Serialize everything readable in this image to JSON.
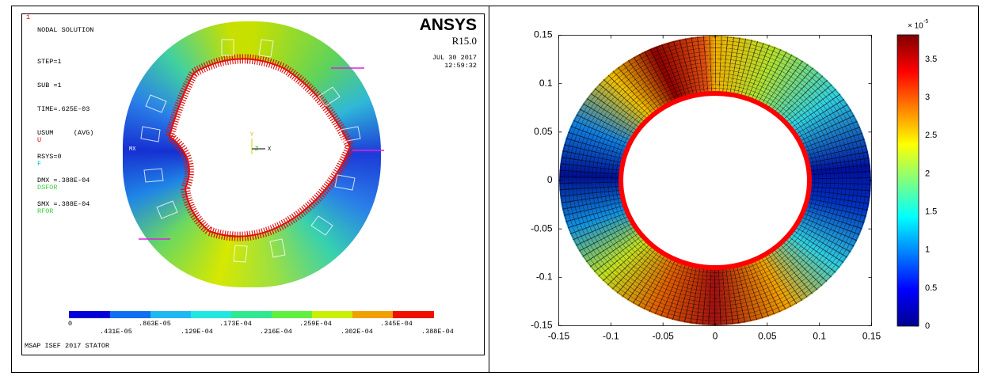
{
  "left_panel": {
    "corner_label": "1",
    "title": "NODAL SOLUTION",
    "info": [
      "STEP=1",
      "SUB =1",
      "TIME=.625E-03",
      "USUM     (AVG)",
      "RSYS=0",
      "DMX =.388E-04",
      "SMX =.388E-04"
    ],
    "legend": [
      "U",
      "F",
      "DSFOR",
      "RFOR"
    ],
    "brand": "ANSYS",
    "version": "R15.0",
    "date": "JUL 30 2017",
    "time": "12:59:32",
    "marker": "MX",
    "triad": [
      "Y",
      "Z",
      "X"
    ],
    "colorbar_labels_top": [
      "0",
      ".863E-05",
      ".173E-04",
      ".259E-04",
      ".345E-04"
    ],
    "colorbar_labels_bottom": [
      ".431E-05",
      ".129E-04",
      ".216E-04",
      ".302E-04",
      ".388E-04"
    ],
    "caption": "MSAP ISEF 2017 STATOR"
  },
  "right_panel": {
    "x_ticks": [
      "-0.15",
      "-0.1",
      "-0.05",
      "0",
      "0.05",
      "0.1",
      "0.15"
    ],
    "y_ticks": [
      "0.15",
      "0.1",
      "0.05",
      "0",
      "-0.05",
      "-0.1",
      "-0.15"
    ],
    "colorbar_ticks": [
      "0",
      "0.5",
      "1",
      "1.5",
      "2",
      "2.5",
      "3",
      "3.5"
    ],
    "colorbar_multiplier": "× 10",
    "colorbar_exponent": "-5"
  }
}
